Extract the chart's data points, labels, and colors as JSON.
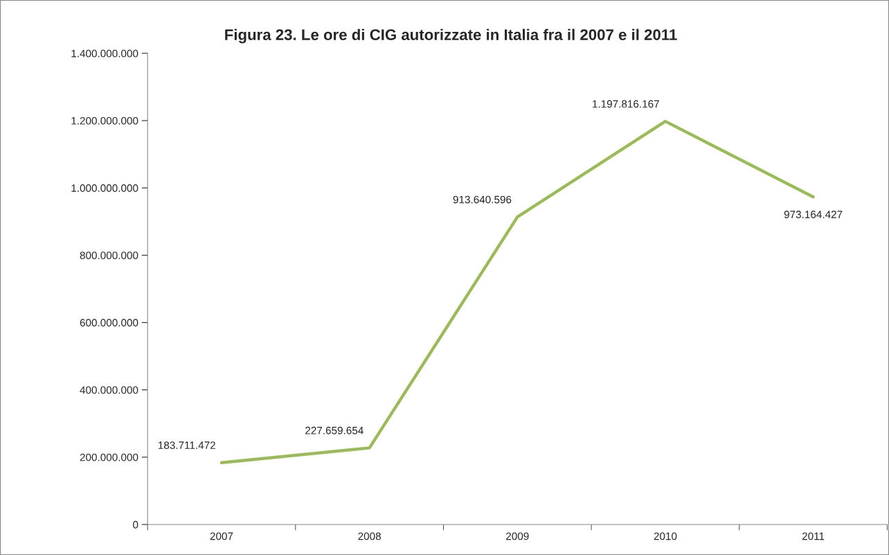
{
  "chart_data": {
    "type": "line",
    "title": "Figura 23. Le ore di CIG autorizzate in Italia fra il 2007 e il 2011",
    "categories": [
      "2007",
      "2008",
      "2009",
      "2010",
      "2011"
    ],
    "series": [
      {
        "color": "#9bbb59",
        "values": [
          183711472,
          227659654,
          913640596,
          1197816167,
          973164427
        ],
        "value_labels": [
          "183.711.472",
          "227.659.654",
          "913.640.596",
          "1.197.816.167",
          "973.164.427"
        ]
      }
    ],
    "ylim": [
      0,
      1400000000
    ],
    "yticks": [
      0,
      {
        "value": 200000000,
        "label": "200.000.000"
      },
      {
        "value": 400000000,
        "label": "400.000.000"
      },
      {
        "value": 600000000,
        "label": "600.000.000"
      },
      {
        "value": 800000000,
        "label": "800.000.000"
      },
      {
        "value": 1000000000,
        "label": "1.000.000.000"
      },
      {
        "value": 1200000000,
        "label": "1.200.000.000"
      },
      {
        "value": 1400000000,
        "label": "1.400.000.000"
      }
    ],
    "grid": false,
    "marker": "none",
    "line_style": "solid"
  }
}
